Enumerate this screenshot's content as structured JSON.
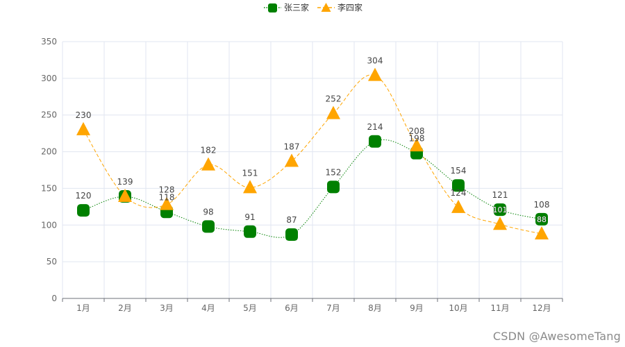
{
  "chart_data": {
    "type": "line",
    "title": "",
    "xlabel": "",
    "ylabel": "",
    "categories": [
      "1月",
      "2月",
      "3月",
      "4月",
      "5月",
      "6月",
      "7月",
      "8月",
      "9月",
      "10月",
      "11月",
      "12月"
    ],
    "yticks": [
      "0",
      "50",
      "100",
      "150",
      "200",
      "250",
      "300",
      "350"
    ],
    "ylim": [
      0,
      350
    ],
    "grid": true,
    "smooth": true,
    "legend_position": "top-center",
    "series": [
      {
        "name": "张三家",
        "values": [
          120,
          139,
          118,
          98,
          91,
          87,
          152,
          214,
          198,
          154,
          121,
          108
        ],
        "inner_labels": [
          null,
          null,
          null,
          null,
          null,
          null,
          null,
          null,
          null,
          null,
          "101",
          "88"
        ],
        "color": "#008000",
        "line_style": "dotted",
        "marker": "rounded-square"
      },
      {
        "name": "李四家",
        "values": [
          230,
          null,
          128,
          182,
          151,
          187,
          252,
          304,
          208,
          124,
          null,
          null
        ],
        "plot_values": [
          230,
          139,
          128,
          182,
          151,
          187,
          252,
          304,
          208,
          124,
          101,
          88
        ],
        "color": "#FFA500",
        "line_style": "dashed",
        "marker": "triangle"
      }
    ]
  },
  "watermark": "CSDN @AwesomeTang"
}
